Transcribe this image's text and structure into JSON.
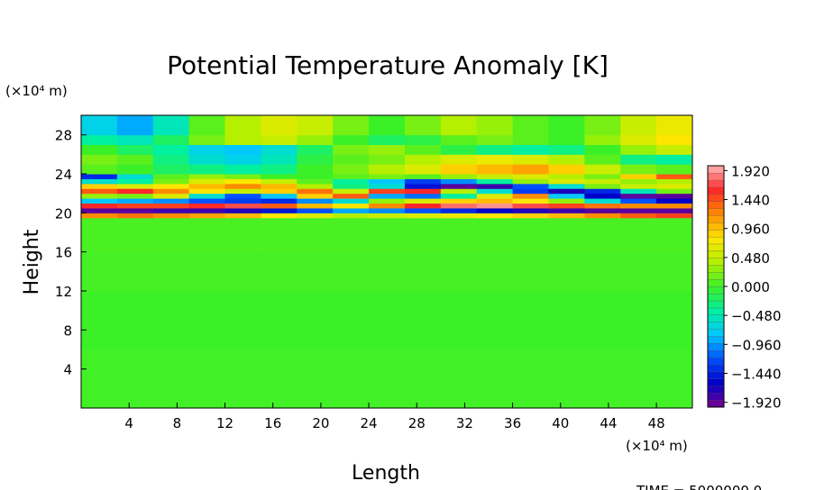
{
  "chart_data": {
    "type": "heatmap",
    "title": "Potential Temperature Anomaly [K]",
    "x_label": "Length",
    "y_label": "Height",
    "x_unit": "(×10⁴ m)",
    "y_unit": "(×10⁴ m)",
    "footer": "TIME = 5000000.0",
    "xlim": [
      0,
      51
    ],
    "ylim": [
      0,
      30
    ],
    "xticks": [
      4,
      8,
      12,
      16,
      20,
      24,
      28,
      32,
      36,
      40,
      44,
      48
    ],
    "yticks": [
      4,
      8,
      12,
      16,
      20,
      24,
      28
    ],
    "xbins": [
      0,
      3,
      6,
      9,
      12,
      15,
      18,
      21,
      24,
      27,
      30,
      33,
      36,
      39,
      42,
      45,
      48,
      51
    ],
    "ybins": [
      0,
      6,
      12,
      16,
      19.5,
      20,
      20.5,
      21,
      21.5,
      22,
      22.5,
      23,
      23.5,
      24,
      25,
      26,
      27,
      28,
      30
    ],
    "values": [
      [
        0.02,
        0.02,
        0.02,
        0.02,
        0.02,
        0.02,
        0.02,
        0.02,
        0.02,
        0.02,
        0.02,
        0.02,
        0.02,
        0.02,
        0.02,
        0.02,
        0.02
      ],
      [
        0,
        0,
        0,
        0,
        0,
        0,
        0,
        0,
        0,
        0,
        0,
        0,
        0,
        0,
        0,
        0,
        0
      ],
      [
        0.03,
        0.03,
        0.03,
        0.03,
        0.03,
        0.03,
        0.03,
        0.03,
        0.03,
        0.03,
        0.03,
        0.03,
        0.03,
        0.03,
        0.03,
        0.03,
        0.03
      ],
      [
        0.05,
        0.05,
        0.05,
        0.05,
        0.05,
        0.05,
        0.05,
        0.05,
        0.05,
        0.05,
        0.05,
        0.05,
        0.05,
        0.05,
        0.05,
        0.05,
        0.05
      ],
      [
        1.2,
        1.3,
        1.2,
        1.1,
        1.0,
        0.8,
        0.6,
        0.4,
        0.5,
        0.6,
        0.7,
        0.8,
        0.9,
        1.0,
        1.2,
        1.4,
        1.5
      ],
      [
        -1.9,
        -1.9,
        -1.8,
        -1.8,
        -1.7,
        -1.5,
        -1.2,
        -0.9,
        -1.0,
        -1.2,
        -1.4,
        -1.6,
        -1.7,
        -1.8,
        -1.9,
        -1.9,
        -1.9
      ],
      [
        1.6,
        1.5,
        1.5,
        1.6,
        1.7,
        1.4,
        1.0,
        0.8,
        1.2,
        1.6,
        1.8,
        1.9,
        1.7,
        1.5,
        1.3,
        1.2,
        1.2
      ],
      [
        -0.8,
        -0.9,
        -1.0,
        -1.2,
        -1.3,
        -1.4,
        -1.0,
        -0.6,
        0.3,
        0.6,
        0.9,
        1.0,
        0.8,
        0.3,
        -0.6,
        -1.2,
        -1.6
      ],
      [
        0.3,
        0.2,
        0.6,
        -0.6,
        -1.2,
        -0.8,
        0.9,
        1.4,
        -0.9,
        -1.1,
        -0.4,
        0.6,
        1.2,
        -0.8,
        -1.6,
        -1.9,
        -1.9
      ],
      [
        1.4,
        1.6,
        1.2,
        0.8,
        0.5,
        0.9,
        1.3,
        0.5,
        1.5,
        1.6,
        0.4,
        -0.6,
        -1.3,
        -1.7,
        -1.4,
        -0.5,
        0.2
      ],
      [
        0.9,
        0.6,
        0.8,
        1.0,
        1.2,
        1.0,
        0.4,
        -0.3,
        -0.6,
        -1.5,
        -1.9,
        -1.8,
        -1.2,
        -0.6,
        0.2,
        0.5,
        0.6
      ],
      [
        -0.6,
        -0.4,
        0.2,
        0.6,
        0.8,
        0.5,
        0.1,
        -0.4,
        -0.8,
        -1.3,
        -1.0,
        -0.4,
        0.3,
        0.6,
        0.5,
        0.3,
        0.4
      ],
      [
        -1.4,
        -0.6,
        0.1,
        0.3,
        0.2,
        0.0,
        0.0,
        0.1,
        0.2,
        0.1,
        0.3,
        0.5,
        0.6,
        0.4,
        0.2,
        0.9,
        1.4
      ],
      [
        0.1,
        0.0,
        -0.2,
        -0.3,
        -0.4,
        -0.3,
        0.0,
        0.2,
        0.4,
        0.6,
        0.9,
        1.0,
        1.1,
        0.9,
        0.5,
        0.2,
        0.1
      ],
      [
        0.2,
        0.1,
        -0.3,
        -0.6,
        -0.7,
        -0.5,
        -0.1,
        0.1,
        0.2,
        0.4,
        0.6,
        0.7,
        0.6,
        0.4,
        0.1,
        -0.3,
        -0.4
      ],
      [
        0.0,
        -0.2,
        -0.4,
        -0.7,
        -0.8,
        -0.6,
        -0.2,
        0.2,
        0.3,
        0.1,
        -0.1,
        -0.3,
        -0.4,
        -0.3,
        0.0,
        0.3,
        0.5
      ],
      [
        -0.4,
        -0.5,
        -0.2,
        0.2,
        0.4,
        0.5,
        0.3,
        0.0,
        -0.2,
        -0.1,
        0.1,
        0.2,
        0.1,
        0.0,
        0.3,
        0.6,
        0.8
      ],
      [
        -0.7,
        -0.9,
        -0.5,
        0.1,
        0.4,
        0.6,
        0.5,
        0.2,
        0.0,
        0.2,
        0.4,
        0.3,
        0.1,
        0.0,
        0.2,
        0.5,
        0.7
      ]
    ],
    "clim": [
      -2.0,
      2.0
    ],
    "colormap": [
      "#780090",
      "#0000c8",
      "#0050ff",
      "#00c8ff",
      "#00f0a0",
      "#3cf028",
      "#b4f000",
      "#ffe600",
      "#ff8c00",
      "#ff2828",
      "#ffb4b4"
    ],
    "cticks": [
      {
        "value": 1.92,
        "label": "1.920"
      },
      {
        "value": 1.44,
        "label": "1.440"
      },
      {
        "value": 0.96,
        "label": "0.960"
      },
      {
        "value": 0.48,
        "label": "0.480"
      },
      {
        "value": 0,
        "label": "0.000"
      },
      {
        "value": -0.48,
        "label": "−0.480"
      },
      {
        "value": -0.96,
        "label": "−0.960"
      },
      {
        "value": -1.44,
        "label": "−1.440"
      },
      {
        "value": -1.92,
        "label": "−1.920"
      }
    ]
  }
}
